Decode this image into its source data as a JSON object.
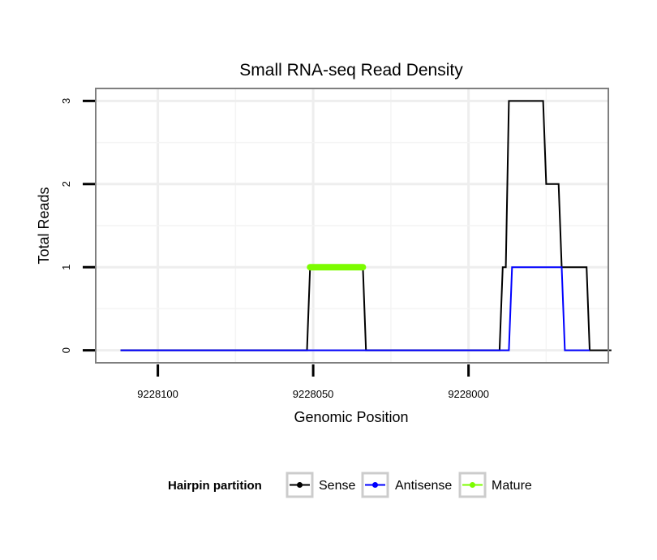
{
  "chart_data": {
    "type": "line",
    "title": "Small RNA-seq Read Density",
    "xlabel": "Genomic Position",
    "ylabel": "Total Reads",
    "x_reversed": true,
    "xlim": [
      9228120,
      9227955
    ],
    "ylim": [
      -0.15,
      3.15
    ],
    "x_ticks": [
      9228100,
      9228050,
      9228000
    ],
    "x_tick_labels": [
      "9228100",
      "9228050",
      "9228000"
    ],
    "y_ticks": [
      0,
      1,
      2,
      3
    ],
    "y_tick_labels": [
      "0",
      "1",
      "2",
      "3"
    ],
    "grid": true,
    "legend": {
      "title": "Hairpin partition",
      "position": "bottom",
      "entries": [
        {
          "name": "Sense",
          "color": "#000000"
        },
        {
          "name": "Antisense",
          "color": "#0000ff"
        },
        {
          "name": "Mature",
          "color": "#7cfc00"
        }
      ]
    },
    "series": [
      {
        "name": "Sense",
        "color": "#000000",
        "points": [
          [
            9228112,
            0
          ],
          [
            9228052,
            0
          ],
          [
            9228051,
            1
          ],
          [
            9228034,
            1
          ],
          [
            9228033,
            0
          ],
          [
            9227990,
            0
          ],
          [
            9227989,
            1
          ],
          [
            9227988,
            1
          ],
          [
            9227987,
            3
          ],
          [
            9227976,
            3
          ],
          [
            9227975,
            2
          ],
          [
            9227971,
            2
          ],
          [
            9227970,
            1
          ],
          [
            9227962,
            1
          ],
          [
            9227961,
            0
          ],
          [
            9227954,
            0
          ]
        ]
      },
      {
        "name": "Antisense",
        "color": "#0000ff",
        "points": [
          [
            9228112,
            0
          ],
          [
            9227987,
            0
          ],
          [
            9227986,
            1
          ],
          [
            9227970,
            1
          ],
          [
            9227969,
            0
          ],
          [
            9227961,
            0
          ]
        ]
      },
      {
        "name": "Mature",
        "color": "#7cfc00",
        "points": [
          [
            9228051,
            1
          ],
          [
            9228034,
            1
          ]
        ]
      }
    ]
  }
}
